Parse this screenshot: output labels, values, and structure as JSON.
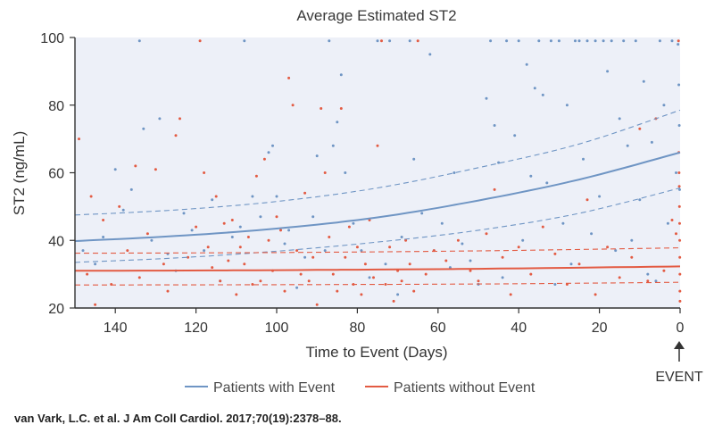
{
  "chart_data": {
    "type": "scatter",
    "title": "Average Estimated ST2",
    "xlabel": "Time to Event (Days)",
    "ylabel": "ST2 (ng/mL)",
    "x_reversed": true,
    "xlim": [
      150,
      0
    ],
    "ylim": [
      20,
      100
    ],
    "x_ticks": [
      140,
      120,
      100,
      80,
      60,
      40,
      20,
      0
    ],
    "y_ticks": [
      20,
      40,
      60,
      80,
      100
    ],
    "grid": false,
    "background": "#edf0f8",
    "legend_position": "bottom",
    "event_label": "EVENT",
    "series": [
      {
        "name": "Patients with Event",
        "color": "#6f95c4",
        "fit": [
          [
            150,
            39.8
          ],
          [
            125,
            41.3
          ],
          [
            100,
            43.5
          ],
          [
            75,
            46.8
          ],
          [
            50,
            51.8
          ],
          [
            25,
            58.0
          ],
          [
            0,
            66.0
          ]
        ],
        "ci_upper": [
          [
            150,
            47.5
          ],
          [
            125,
            49.0
          ],
          [
            100,
            51.5
          ],
          [
            75,
            55.5
          ],
          [
            50,
            61.5
          ],
          [
            25,
            68.5
          ],
          [
            0,
            78.5
          ]
        ],
        "ci_lower": [
          [
            150,
            33.5
          ],
          [
            125,
            34.8
          ],
          [
            100,
            36.8
          ],
          [
            75,
            39.5
          ],
          [
            50,
            43.0
          ],
          [
            25,
            48.0
          ],
          [
            0,
            55.5
          ]
        ],
        "points": [
          [
            148,
            37
          ],
          [
            145,
            33
          ],
          [
            143,
            41
          ],
          [
            140,
            61
          ],
          [
            138,
            49
          ],
          [
            136,
            55
          ],
          [
            134,
            99
          ],
          [
            133,
            73
          ],
          [
            131,
            40
          ],
          [
            129,
            76
          ],
          [
            127,
            36
          ],
          [
            125,
            31
          ],
          [
            123,
            48
          ],
          [
            121,
            43
          ],
          [
            118,
            37
          ],
          [
            116,
            52
          ],
          [
            114,
            28
          ],
          [
            111,
            41
          ],
          [
            109,
            44
          ],
          [
            108,
            99
          ],
          [
            106,
            53
          ],
          [
            104,
            47
          ],
          [
            102,
            66
          ],
          [
            101,
            68
          ],
          [
            100,
            53
          ],
          [
            98,
            39
          ],
          [
            97,
            43
          ],
          [
            95,
            26
          ],
          [
            93,
            35
          ],
          [
            91,
            47
          ],
          [
            90,
            65
          ],
          [
            88,
            37
          ],
          [
            87,
            99
          ],
          [
            86,
            68
          ],
          [
            85,
            75
          ],
          [
            84,
            89
          ],
          [
            83,
            60
          ],
          [
            81,
            45
          ],
          [
            79,
            37
          ],
          [
            77,
            29
          ],
          [
            75,
            99
          ],
          [
            73,
            33
          ],
          [
            72,
            99
          ],
          [
            70,
            24
          ],
          [
            69,
            41
          ],
          [
            67,
            99
          ],
          [
            66,
            64
          ],
          [
            64,
            48
          ],
          [
            62,
            95
          ],
          [
            61,
            37
          ],
          [
            59,
            45
          ],
          [
            57,
            32
          ],
          [
            56,
            60
          ],
          [
            54,
            39
          ],
          [
            52,
            34
          ],
          [
            50,
            27
          ],
          [
            48,
            82
          ],
          [
            47,
            99
          ],
          [
            46,
            74
          ],
          [
            45,
            63
          ],
          [
            44,
            29
          ],
          [
            43,
            99
          ],
          [
            41,
            71
          ],
          [
            40,
            99
          ],
          [
            39,
            40
          ],
          [
            38,
            92
          ],
          [
            37,
            59
          ],
          [
            36,
            85
          ],
          [
            35,
            99
          ],
          [
            34,
            83
          ],
          [
            33,
            57
          ],
          [
            32,
            99
          ],
          [
            31,
            27
          ],
          [
            30,
            99
          ],
          [
            29,
            45
          ],
          [
            28,
            80
          ],
          [
            27,
            33
          ],
          [
            26,
            99
          ],
          [
            25,
            99
          ],
          [
            24,
            64
          ],
          [
            23,
            99
          ],
          [
            22,
            42
          ],
          [
            21,
            99
          ],
          [
            20,
            53
          ],
          [
            19,
            99
          ],
          [
            18,
            90
          ],
          [
            17,
            99
          ],
          [
            16,
            37
          ],
          [
            15,
            76
          ],
          [
            14,
            99
          ],
          [
            13,
            68
          ],
          [
            12,
            40
          ],
          [
            11,
            99
          ],
          [
            10,
            52
          ],
          [
            9,
            87
          ],
          [
            8,
            30
          ],
          [
            7,
            69
          ],
          [
            6,
            28
          ],
          [
            5,
            99
          ],
          [
            4,
            80
          ],
          [
            3,
            45
          ],
          [
            2,
            99
          ],
          [
            1,
            60
          ],
          [
            0.5,
            98
          ],
          [
            0.3,
            86
          ],
          [
            0.2,
            74
          ],
          [
            0.1,
            55
          ]
        ]
      },
      {
        "name": "Patients without Event",
        "color": "#e35b43",
        "fit": [
          [
            150,
            31.0
          ],
          [
            100,
            31.2
          ],
          [
            50,
            31.6
          ],
          [
            0,
            32.3
          ]
        ],
        "ci_upper": [
          [
            150,
            36.2
          ],
          [
            100,
            36.4
          ],
          [
            50,
            36.9
          ],
          [
            0,
            37.8
          ]
        ],
        "ci_lower": [
          [
            150,
            26.8
          ],
          [
            100,
            26.9
          ],
          [
            50,
            27.1
          ],
          [
            0,
            27.6
          ]
        ],
        "points": [
          [
            149,
            70
          ],
          [
            147,
            30
          ],
          [
            146,
            53
          ],
          [
            145,
            21
          ],
          [
            143,
            46
          ],
          [
            141,
            27
          ],
          [
            139,
            50
          ],
          [
            137,
            37
          ],
          [
            135,
            62
          ],
          [
            134,
            29
          ],
          [
            132,
            42
          ],
          [
            130,
            61
          ],
          [
            128,
            33
          ],
          [
            127,
            25
          ],
          [
            125,
            71
          ],
          [
            124,
            76
          ],
          [
            122,
            35
          ],
          [
            120,
            44
          ],
          [
            119,
            99
          ],
          [
            118,
            60
          ],
          [
            117,
            38
          ],
          [
            116,
            32
          ],
          [
            115,
            53
          ],
          [
            114,
            28
          ],
          [
            113,
            45
          ],
          [
            112,
            34
          ],
          [
            111,
            46
          ],
          [
            110,
            24
          ],
          [
            109,
            38
          ],
          [
            108,
            33
          ],
          [
            107,
            41
          ],
          [
            106,
            27
          ],
          [
            105,
            59
          ],
          [
            104,
            28
          ],
          [
            103,
            64
          ],
          [
            102,
            40
          ],
          [
            101,
            31
          ],
          [
            100,
            47
          ],
          [
            99,
            43
          ],
          [
            98,
            25
          ],
          [
            97,
            88
          ],
          [
            96,
            80
          ],
          [
            95,
            37
          ],
          [
            94,
            30
          ],
          [
            93,
            54
          ],
          [
            92,
            28
          ],
          [
            91,
            35
          ],
          [
            90,
            21
          ],
          [
            89,
            79
          ],
          [
            88,
            60
          ],
          [
            87,
            41
          ],
          [
            86,
            30
          ],
          [
            85,
            25
          ],
          [
            84,
            79
          ],
          [
            83,
            35
          ],
          [
            82,
            44
          ],
          [
            81,
            27
          ],
          [
            80,
            38
          ],
          [
            79,
            24
          ],
          [
            78,
            33
          ],
          [
            77,
            46
          ],
          [
            76,
            29
          ],
          [
            75,
            68
          ],
          [
            74,
            99
          ],
          [
            73,
            27
          ],
          [
            72,
            38
          ],
          [
            71,
            22
          ],
          [
            70,
            31
          ],
          [
            69,
            28
          ],
          [
            68,
            40
          ],
          [
            67,
            33
          ],
          [
            66,
            25
          ],
          [
            65,
            99
          ],
          [
            63,
            30
          ],
          [
            61,
            37
          ],
          [
            58,
            34
          ],
          [
            55,
            40
          ],
          [
            52,
            31
          ],
          [
            50,
            28
          ],
          [
            48,
            42
          ],
          [
            46,
            55
          ],
          [
            44,
            35
          ],
          [
            42,
            24
          ],
          [
            40,
            38
          ],
          [
            37,
            30
          ],
          [
            34,
            44
          ],
          [
            31,
            36
          ],
          [
            28,
            27
          ],
          [
            25,
            33
          ],
          [
            23,
            52
          ],
          [
            21,
            24
          ],
          [
            18,
            38
          ],
          [
            15,
            29
          ],
          [
            12,
            35
          ],
          [
            10,
            73
          ],
          [
            8,
            28
          ],
          [
            6,
            76
          ],
          [
            4,
            31
          ],
          [
            2,
            46
          ],
          [
            1,
            42
          ],
          [
            0.4,
            99
          ],
          [
            0.3,
            66
          ],
          [
            0.25,
            60
          ],
          [
            0.2,
            56
          ],
          [
            0.15,
            50
          ],
          [
            0.1,
            45
          ],
          [
            0.08,
            40
          ],
          [
            0.06,
            35
          ],
          [
            0.05,
            30
          ],
          [
            0.04,
            25
          ],
          [
            0.03,
            22
          ]
        ]
      }
    ]
  },
  "citation": "van Vark, L.C. et al. J Am Coll Cardiol. 2017;70(19):2378–88."
}
